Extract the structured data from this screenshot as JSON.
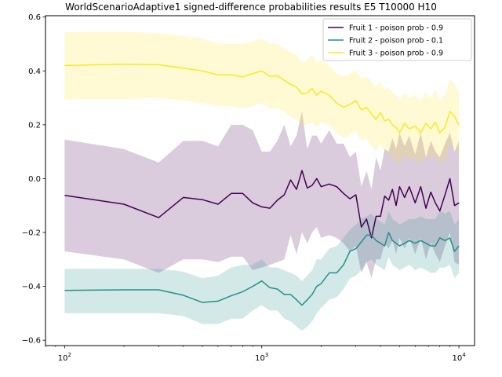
{
  "chart_data": {
    "type": "line",
    "title": "WorldScenarioAdaptive1 signed-difference probabilities results E5 T10000 H10",
    "xlabel": "",
    "ylabel": "",
    "xscale": "log",
    "xlim": [
      80,
      12000
    ],
    "ylim": [
      -0.62,
      0.605
    ],
    "xticks": [
      {
        "value": 100,
        "base": "10",
        "exp": "2"
      },
      {
        "value": 1000,
        "base": "10",
        "exp": "3"
      },
      {
        "value": 10000,
        "base": "10",
        "exp": "4"
      }
    ],
    "yticks": [
      {
        "value": 0.6,
        "label": "0.6"
      },
      {
        "value": 0.4,
        "label": "0.4"
      },
      {
        "value": 0.2,
        "label": "0.2"
      },
      {
        "value": 0.0,
        "label": "0.0"
      },
      {
        "value": -0.2,
        "label": "−0.2"
      },
      {
        "value": -0.4,
        "label": "−0.4"
      },
      {
        "value": -0.6,
        "label": "−0.6"
      }
    ],
    "grid": false,
    "legend_position": "top-right",
    "series": [
      {
        "name": "Fruit 1 - poison prob  - 0.9",
        "color": "#440154",
        "band_alpha": 0.2,
        "x": [
          100,
          200,
          300,
          400,
          500,
          600,
          700,
          800,
          900,
          1000,
          1100,
          1200,
          1300,
          1400,
          1500,
          1600,
          1700,
          1800,
          1900,
          2000,
          2200,
          2400,
          2600,
          2800,
          3000,
          3200,
          3400,
          3600,
          3800,
          4000,
          4200,
          4400,
          4600,
          4800,
          5000,
          5300,
          5600,
          6000,
          6400,
          6800,
          7200,
          7600,
          8000,
          8500,
          9000,
          9500,
          10000
        ],
        "y": [
          -0.062,
          -0.095,
          -0.145,
          -0.07,
          -0.078,
          -0.095,
          -0.055,
          -0.055,
          -0.09,
          -0.105,
          -0.11,
          -0.08,
          -0.06,
          -0.005,
          -0.04,
          0.03,
          -0.035,
          -0.025,
          0.0,
          -0.03,
          -0.02,
          -0.03,
          -0.055,
          -0.075,
          -0.06,
          -0.18,
          -0.15,
          -0.22,
          -0.14,
          -0.14,
          -0.065,
          -0.08,
          -0.04,
          -0.1,
          -0.03,
          -0.07,
          -0.03,
          -0.09,
          -0.03,
          -0.11,
          -0.05,
          -0.09,
          -0.12,
          -0.06,
          0.0,
          -0.1,
          -0.09
        ],
        "upper": [
          0.145,
          0.11,
          0.06,
          0.14,
          0.14,
          0.12,
          0.2,
          0.2,
          0.18,
          0.1,
          0.1,
          0.14,
          0.2,
          0.12,
          0.16,
          0.25,
          0.11,
          0.16,
          0.16,
          0.13,
          0.18,
          0.13,
          0.13,
          0.08,
          0.1,
          -0.03,
          0.03,
          -0.04,
          0.08,
          0.03,
          0.11,
          0.1,
          0.15,
          0.11,
          0.17,
          0.12,
          0.16,
          0.09,
          0.17,
          0.08,
          0.14,
          0.1,
          0.08,
          0.13,
          0.17,
          0.1,
          0.14
        ],
        "lower": [
          -0.27,
          -0.3,
          -0.35,
          -0.3,
          -0.3,
          -0.31,
          -0.29,
          -0.29,
          -0.34,
          -0.33,
          -0.32,
          -0.31,
          -0.3,
          -0.21,
          -0.28,
          -0.2,
          -0.24,
          -0.2,
          -0.18,
          -0.22,
          -0.21,
          -0.22,
          -0.24,
          -0.27,
          -0.25,
          -0.35,
          -0.31,
          -0.37,
          -0.3,
          -0.3,
          -0.24,
          -0.26,
          -0.23,
          -0.28,
          -0.22,
          -0.26,
          -0.22,
          -0.28,
          -0.22,
          -0.3,
          -0.24,
          -0.28,
          -0.31,
          -0.25,
          -0.2,
          -0.31,
          -0.32
        ]
      },
      {
        "name": "Fruit 2 - poison prob  - 0.1",
        "color": "#21918c",
        "band_alpha": 0.2,
        "x": [
          100,
          200,
          300,
          400,
          500,
          600,
          700,
          800,
          900,
          1000,
          1100,
          1200,
          1300,
          1400,
          1500,
          1600,
          1700,
          1800,
          1900,
          2000,
          2200,
          2400,
          2600,
          2800,
          3000,
          3200,
          3400,
          3600,
          3800,
          4000,
          4200,
          4400,
          4600,
          4800,
          5000,
          5300,
          5600,
          6000,
          6400,
          6800,
          7200,
          7600,
          8000,
          8500,
          9000,
          9500,
          10000
        ],
        "y": [
          -0.415,
          -0.413,
          -0.413,
          -0.433,
          -0.46,
          -0.455,
          -0.435,
          -0.42,
          -0.4,
          -0.38,
          -0.405,
          -0.41,
          -0.43,
          -0.43,
          -0.45,
          -0.47,
          -0.45,
          -0.43,
          -0.4,
          -0.39,
          -0.35,
          -0.35,
          -0.32,
          -0.27,
          -0.26,
          -0.235,
          -0.21,
          -0.21,
          -0.23,
          -0.24,
          -0.25,
          -0.2,
          -0.23,
          -0.24,
          -0.25,
          -0.24,
          -0.23,
          -0.24,
          -0.23,
          -0.24,
          -0.25,
          -0.25,
          -0.22,
          -0.23,
          -0.22,
          -0.27,
          -0.25
        ],
        "upper": [
          -0.335,
          -0.335,
          -0.335,
          -0.345,
          -0.37,
          -0.36,
          -0.33,
          -0.32,
          -0.32,
          -0.3,
          -0.33,
          -0.33,
          -0.34,
          -0.35,
          -0.36,
          -0.38,
          -0.36,
          -0.34,
          -0.3,
          -0.3,
          -0.26,
          -0.25,
          -0.22,
          -0.19,
          -0.17,
          -0.15,
          -0.14,
          -0.13,
          -0.15,
          -0.16,
          -0.17,
          -0.12,
          -0.15,
          -0.16,
          -0.17,
          -0.16,
          -0.15,
          -0.15,
          -0.14,
          -0.15,
          -0.15,
          -0.15,
          -0.12,
          -0.13,
          -0.12,
          -0.17,
          -0.15
        ],
        "lower": [
          -0.5,
          -0.5,
          -0.5,
          -0.51,
          -0.54,
          -0.54,
          -0.52,
          -0.52,
          -0.49,
          -0.47,
          -0.49,
          -0.49,
          -0.52,
          -0.53,
          -0.55,
          -0.565,
          -0.55,
          -0.53,
          -0.5,
          -0.48,
          -0.45,
          -0.44,
          -0.41,
          -0.37,
          -0.36,
          -0.34,
          -0.31,
          -0.3,
          -0.32,
          -0.33,
          -0.34,
          -0.29,
          -0.32,
          -0.33,
          -0.34,
          -0.33,
          -0.32,
          -0.34,
          -0.33,
          -0.34,
          -0.35,
          -0.35,
          -0.33,
          -0.33,
          -0.32,
          -0.37,
          -0.35
        ]
      },
      {
        "name": "Fruit 3 - poison prob  - 0.9",
        "color": "#fde725",
        "band_alpha": 0.2,
        "x": [
          100,
          200,
          300,
          400,
          500,
          600,
          700,
          800,
          900,
          1000,
          1100,
          1200,
          1300,
          1400,
          1500,
          1600,
          1700,
          1800,
          1900,
          2000,
          2200,
          2400,
          2600,
          2800,
          3000,
          3200,
          3400,
          3600,
          3800,
          4000,
          4200,
          4400,
          4600,
          4800,
          5000,
          5300,
          5600,
          6000,
          6400,
          6800,
          7200,
          7600,
          8000,
          8500,
          9000,
          9500,
          10000
        ],
        "y": [
          0.42,
          0.425,
          0.423,
          0.41,
          0.4,
          0.385,
          0.385,
          0.378,
          0.39,
          0.4,
          0.38,
          0.382,
          0.365,
          0.35,
          0.34,
          0.315,
          0.318,
          0.335,
          0.31,
          0.325,
          0.31,
          0.28,
          0.265,
          0.275,
          0.29,
          0.255,
          0.265,
          0.24,
          0.22,
          0.245,
          0.215,
          0.22,
          0.2,
          0.19,
          0.17,
          0.205,
          0.185,
          0.195,
          0.17,
          0.205,
          0.185,
          0.21,
          0.17,
          0.19,
          0.25,
          0.23,
          0.2
        ],
        "upper": [
          0.545,
          0.545,
          0.54,
          0.53,
          0.52,
          0.5,
          0.5,
          0.5,
          0.51,
          0.52,
          0.5,
          0.5,
          0.48,
          0.47,
          0.46,
          0.43,
          0.44,
          0.46,
          0.43,
          0.44,
          0.42,
          0.39,
          0.38,
          0.39,
          0.4,
          0.37,
          0.38,
          0.36,
          0.34,
          0.36,
          0.33,
          0.34,
          0.32,
          0.31,
          0.29,
          0.32,
          0.3,
          0.31,
          0.29,
          0.32,
          0.3,
          0.33,
          0.29,
          0.31,
          0.37,
          0.35,
          0.32
        ],
        "lower": [
          0.295,
          0.295,
          0.3,
          0.29,
          0.28,
          0.27,
          0.27,
          0.26,
          0.27,
          0.28,
          0.26,
          0.26,
          0.25,
          0.23,
          0.22,
          0.2,
          0.2,
          0.21,
          0.19,
          0.21,
          0.2,
          0.17,
          0.15,
          0.16,
          0.18,
          0.14,
          0.15,
          0.12,
          0.1,
          0.13,
          0.1,
          0.1,
          0.08,
          0.07,
          0.05,
          0.09,
          0.07,
          0.08,
          0.05,
          0.09,
          0.07,
          0.09,
          0.05,
          0.07,
          0.13,
          0.11,
          0.08
        ]
      }
    ]
  }
}
